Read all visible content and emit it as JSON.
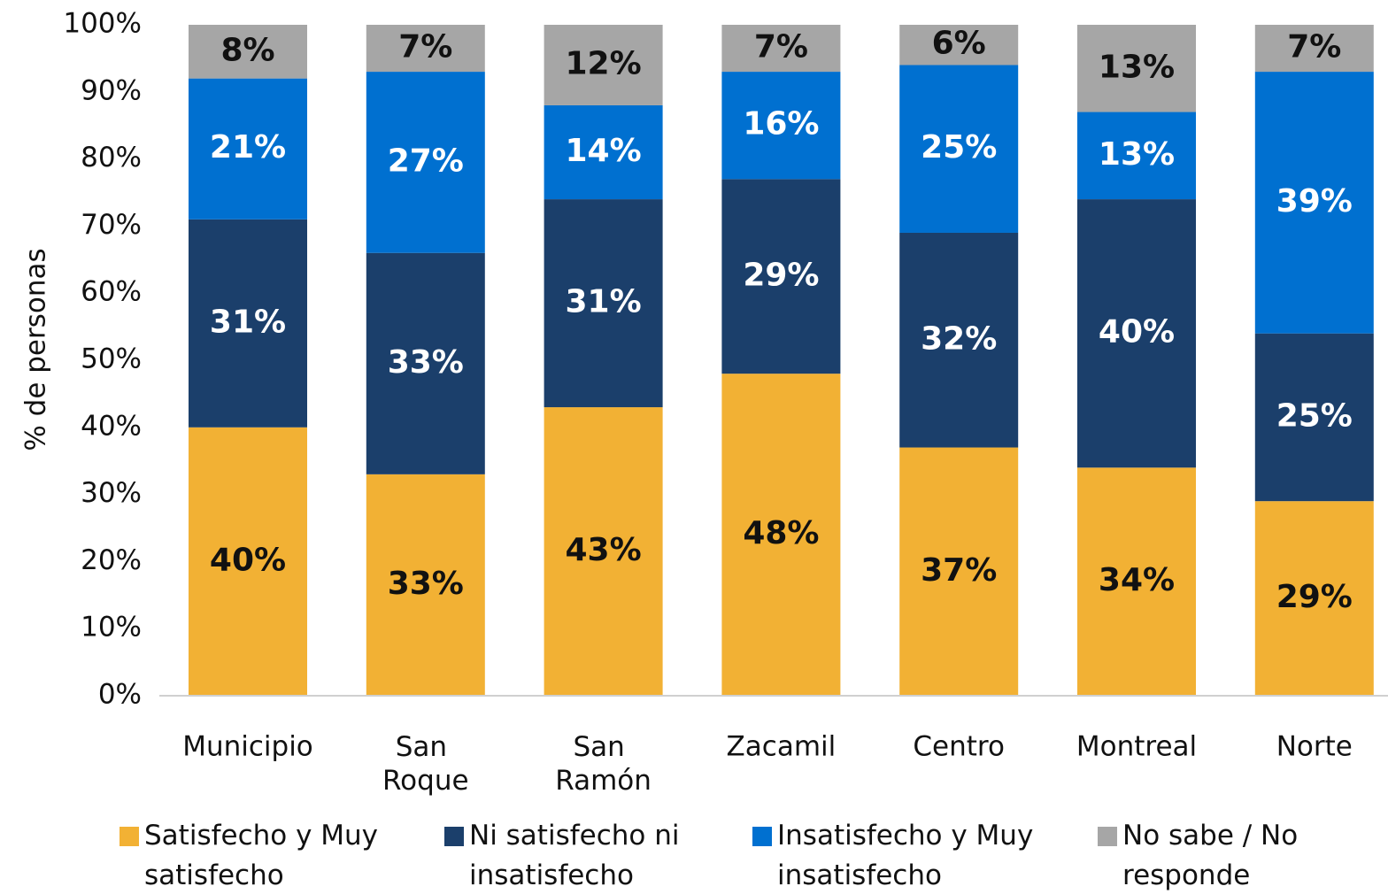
{
  "chart_data": {
    "type": "stacked_bar",
    "y_label": "% de personas",
    "categories": [
      "Municipio",
      "San Roque",
      "San Ramón",
      "Zacamil",
      "Centro",
      "Montreal",
      "Norte"
    ],
    "series": [
      {
        "name": "Satisfecho y Muy satisfecho",
        "color": "#F2B134",
        "label_color": "#111111",
        "values": [
          40,
          33,
          43,
          48,
          37,
          34,
          29
        ],
        "value_labels": [
          "40%",
          "33%",
          "43%",
          "48%",
          "37%",
          "34%",
          "29%"
        ]
      },
      {
        "name": "Ni satisfecho ni insatisfecho",
        "color": "#1B3F6B",
        "label_color": "#ffffff",
        "values": [
          31,
          33,
          31,
          29,
          32,
          40,
          25
        ],
        "value_labels": [
          "31%",
          "33%",
          "31%",
          "29%",
          "32%",
          "40%",
          "25%"
        ]
      },
      {
        "name": "Insatisfecho y Muy insatisfecho",
        "color": "#0070D0",
        "label_color": "#ffffff",
        "values": [
          21,
          27,
          14,
          16,
          25,
          13,
          39
        ],
        "value_labels": [
          "21%",
          "27%",
          "14%",
          "16%",
          "25%",
          "13%",
          "39%"
        ]
      },
      {
        "name": "No sabe / No responde",
        "color": "#A6A6A6",
        "label_color": "#111111",
        "values": [
          8,
          7,
          12,
          7,
          6,
          13,
          7
        ],
        "value_labels": [
          "8%",
          "7%",
          "12%",
          "7%",
          "6%",
          "13%",
          "7%"
        ]
      }
    ],
    "ylim": [
      0,
      100
    ],
    "yticks": [
      {
        "value": 0,
        "label": "0%"
      },
      {
        "value": 10,
        "label": "10%"
      },
      {
        "value": 20,
        "label": "20%"
      },
      {
        "value": 30,
        "label": "30%"
      },
      {
        "value": 40,
        "label": "40%"
      },
      {
        "value": 50,
        "label": "50%"
      },
      {
        "value": 60,
        "label": "60%"
      },
      {
        "value": 70,
        "label": "70%"
      },
      {
        "value": 80,
        "label": "80%"
      },
      {
        "value": 90,
        "label": "90%"
      },
      {
        "value": 100,
        "label": "100%"
      }
    ],
    "grid": false,
    "legend": "bottom"
  }
}
